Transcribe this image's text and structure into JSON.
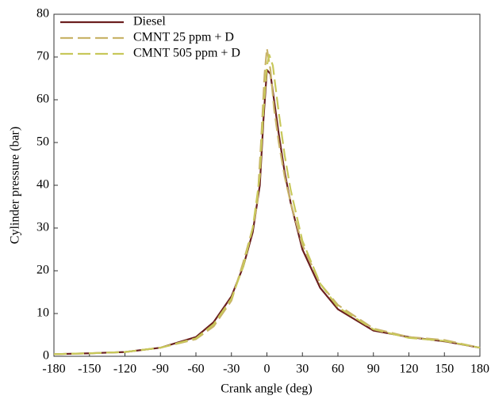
{
  "chart_data": {
    "type": "line",
    "x_label": "Crank angle (deg)",
    "y_label": "Cylinder pressure (bar)",
    "xlim": [
      -180,
      180
    ],
    "ylim": [
      0,
      80
    ],
    "xticks": [
      -180,
      -150,
      -120,
      -90,
      -60,
      -30,
      0,
      30,
      60,
      90,
      120,
      150,
      180
    ],
    "yticks": [
      0,
      10,
      20,
      30,
      40,
      50,
      60,
      70,
      80
    ],
    "grid": false,
    "legend": "upper left",
    "series": [
      {
        "name": "Diesel",
        "color": "#6b1f1f",
        "dash": "solid",
        "x": [
          -180,
          -150,
          -120,
          -90,
          -60,
          -45,
          -30,
          -20,
          -12,
          -6,
          -3,
          0,
          3,
          6,
          10,
          15,
          20,
          30,
          45,
          60,
          90,
          120,
          150,
          180
        ],
        "values": [
          0.5,
          0.7,
          1,
          2,
          4.5,
          8,
          14,
          21,
          29,
          40,
          55,
          67,
          66,
          60,
          52,
          43,
          36,
          25,
          16,
          11,
          6,
          4.5,
          3.5,
          2
        ]
      },
      {
        "name": "CMNT 25 ppm + D",
        "color": "#c9b46a",
        "dash": "dashed",
        "x": [
          -180,
          -150,
          -120,
          -90,
          -60,
          -45,
          -30,
          -20,
          -12,
          -8,
          -5,
          -2,
          0,
          3,
          6,
          10,
          15,
          20,
          30,
          45,
          60,
          90,
          120,
          150,
          180
        ],
        "values": [
          0.5,
          0.7,
          1,
          2,
          4,
          7,
          13,
          22,
          30,
          36,
          50,
          66,
          72,
          67,
          58,
          50,
          42,
          36,
          26,
          17,
          12,
          6.5,
          4.5,
          3.8,
          2
        ]
      },
      {
        "name": "CMNT 505 ppm + D",
        "color": "#c8c85a",
        "dash": "dashed",
        "x": [
          -180,
          -150,
          -120,
          -90,
          -60,
          -45,
          -30,
          -20,
          -12,
          -6,
          -3,
          0,
          2,
          5,
          10,
          15,
          20,
          30,
          45,
          60,
          90,
          120,
          150,
          180
        ],
        "values": [
          0.5,
          0.7,
          1,
          2,
          4.2,
          7.5,
          13.5,
          21,
          30,
          42,
          57,
          68,
          70.5,
          68,
          57,
          47,
          39,
          27,
          17,
          11.5,
          6.3,
          4.3,
          3.6,
          2
        ]
      }
    ]
  }
}
